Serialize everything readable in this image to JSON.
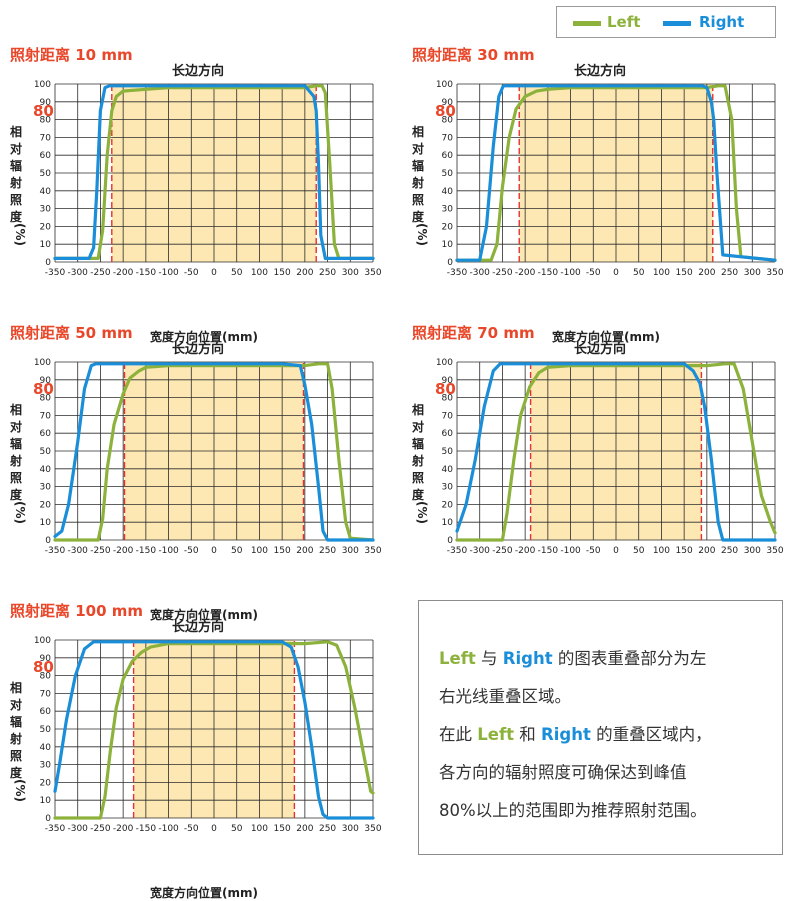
{
  "legend": {
    "left_label": "Left",
    "right_label": "Right",
    "left_color": "#8db23c",
    "right_color": "#1a8ed8"
  },
  "common": {
    "subtitle": "长边方向",
    "ylabel_chars": [
      "相",
      "对",
      "辐",
      "射",
      "照",
      "度"
    ],
    "ylabel_unit": "(%)",
    "marker_80": "80",
    "xlabel": "宽度方向位置(mm)",
    "x_ticks": [
      -350,
      -300,
      -250,
      -200,
      -150,
      -100,
      -50,
      0,
      50,
      100,
      150,
      200,
      250,
      300,
      350
    ],
    "y_ticks": [
      0,
      10,
      20,
      30,
      40,
      50,
      60,
      70,
      80,
      90,
      100
    ],
    "xlim": [
      -350,
      350
    ],
    "ylim": [
      0,
      100
    ],
    "overlap_fill": "#fde8b4",
    "threshold_line_color": "#e83030"
  },
  "chart_data": [
    {
      "type": "line",
      "title": "照射距离 10 mm",
      "overlap_range": [
        -225,
        225
      ],
      "series": [
        {
          "name": "Left",
          "x": [
            -350,
            -255,
            -245,
            -235,
            -225,
            -215,
            -200,
            -150,
            -100,
            -50,
            0,
            50,
            100,
            150,
            200,
            225,
            238,
            245,
            255,
            265,
            275,
            350
          ],
          "y": [
            2,
            2,
            18,
            60,
            85,
            93,
            96,
            97,
            98,
            98,
            98,
            98,
            98,
            98,
            98,
            99,
            99,
            95,
            55,
            10,
            2,
            2
          ]
        },
        {
          "name": "Right",
          "x": [
            -350,
            -275,
            -265,
            -258,
            -250,
            -240,
            -230,
            -200,
            -150,
            -100,
            -50,
            0,
            50,
            100,
            150,
            200,
            220,
            225,
            230,
            235,
            245,
            350
          ],
          "y": [
            2,
            2,
            8,
            40,
            85,
            98,
            99,
            99,
            99,
            99,
            99,
            99,
            99,
            99,
            99,
            99,
            93,
            85,
            55,
            15,
            2,
            2
          ]
        }
      ]
    },
    {
      "type": "line",
      "title": "照射距离 30 mm",
      "overlap_range": [
        -213,
        213
      ],
      "series": [
        {
          "name": "Left",
          "x": [
            -350,
            -275,
            -262,
            -250,
            -235,
            -220,
            -200,
            -175,
            -150,
            -100,
            -50,
            0,
            50,
            100,
            150,
            200,
            225,
            240,
            255,
            265,
            275,
            350
          ],
          "y": [
            1,
            1,
            10,
            42,
            70,
            86,
            93,
            96,
            97,
            98,
            98,
            98,
            98,
            98,
            98,
            98,
            99,
            99,
            80,
            30,
            3,
            1
          ]
        },
        {
          "name": "Right",
          "x": [
            -350,
            -300,
            -285,
            -270,
            -258,
            -248,
            -240,
            -200,
            -150,
            -100,
            -50,
            0,
            50,
            100,
            150,
            190,
            200,
            210,
            215,
            222,
            235,
            350
          ],
          "y": [
            1,
            1,
            20,
            65,
            93,
            99,
            99,
            99,
            99,
            99,
            99,
            99,
            99,
            99,
            99,
            99,
            98,
            90,
            80,
            50,
            4,
            1
          ]
        }
      ]
    },
    {
      "type": "line",
      "title": "照射距离 50 mm",
      "overlap_range": [
        -197,
        197
      ],
      "series": [
        {
          "name": "Left",
          "x": [
            -350,
            -255,
            -245,
            -235,
            -220,
            -200,
            -185,
            -165,
            -150,
            -100,
            -50,
            0,
            50,
            100,
            150,
            200,
            230,
            250,
            260,
            275,
            290,
            300,
            350
          ],
          "y": [
            0,
            0,
            12,
            40,
            65,
            82,
            91,
            95,
            97,
            98,
            98,
            98,
            98,
            98,
            98,
            98,
            99,
            99,
            85,
            45,
            10,
            1,
            0
          ]
        },
        {
          "name": "Right",
          "x": [
            -350,
            -335,
            -320,
            -300,
            -285,
            -270,
            -260,
            -250,
            -200,
            -150,
            -100,
            -50,
            0,
            50,
            100,
            150,
            190,
            200,
            215,
            230,
            240,
            250,
            350
          ],
          "y": [
            2,
            5,
            20,
            55,
            85,
            98,
            99,
            99,
            99,
            99,
            99,
            99,
            99,
            99,
            99,
            99,
            98,
            87,
            65,
            30,
            5,
            0,
            0
          ]
        }
      ]
    },
    {
      "type": "line",
      "title": "照射距离 70 mm",
      "overlap_range": [
        -188,
        188
      ],
      "series": [
        {
          "name": "Left",
          "x": [
            -350,
            -250,
            -240,
            -225,
            -210,
            -190,
            -170,
            -150,
            -100,
            -50,
            0,
            50,
            100,
            150,
            200,
            240,
            260,
            280,
            300,
            320,
            340,
            350
          ],
          "y": [
            0,
            0,
            15,
            45,
            70,
            86,
            94,
            97,
            98,
            98,
            98,
            98,
            98,
            98,
            98,
            99,
            99,
            85,
            55,
            25,
            10,
            4
          ]
        },
        {
          "name": "Right",
          "x": [
            -350,
            -330,
            -310,
            -290,
            -270,
            -255,
            -240,
            -200,
            -150,
            -100,
            -50,
            0,
            50,
            100,
            150,
            170,
            185,
            195,
            210,
            225,
            235,
            350
          ],
          "y": [
            5,
            20,
            45,
            75,
            95,
            99,
            99,
            99,
            99,
            99,
            99,
            99,
            99,
            99,
            99,
            95,
            88,
            75,
            45,
            10,
            0,
            0
          ]
        }
      ]
    },
    {
      "type": "line",
      "title": "照射距离 100 mm",
      "overlap_range": [
        -177,
        177
      ],
      "series": [
        {
          "name": "Left",
          "x": [
            -350,
            -250,
            -240,
            -228,
            -215,
            -200,
            -180,
            -160,
            -140,
            -100,
            -50,
            0,
            50,
            100,
            150,
            200,
            250,
            270,
            290,
            310,
            330,
            345,
            350
          ],
          "y": [
            0,
            0,
            12,
            38,
            62,
            78,
            88,
            93,
            96,
            98,
            98,
            98,
            98,
            98,
            98,
            98,
            99,
            97,
            85,
            62,
            35,
            15,
            14
          ]
        },
        {
          "name": "Right",
          "x": [
            -350,
            -340,
            -325,
            -305,
            -285,
            -265,
            -250,
            -200,
            -150,
            -100,
            -50,
            0,
            50,
            100,
            150,
            170,
            185,
            200,
            215,
            230,
            240,
            250,
            350
          ],
          "y": [
            15,
            30,
            55,
            80,
            95,
            99,
            99,
            99,
            99,
            99,
            99,
            99,
            99,
            99,
            99,
            96,
            85,
            65,
            40,
            12,
            2,
            0,
            0
          ]
        }
      ]
    }
  ],
  "note": {
    "line1_left": "Left",
    "line1_mid": " 与 ",
    "line1_right": "Right",
    "line1_rest": " 的图表重叠部分为左",
    "line2": "右光线重叠区域。",
    "line3_pre": "在此 ",
    "line3_left": "Left",
    "line3_mid": " 和 ",
    "line3_right": "Right",
    "line3_rest": " 的重叠区域内，",
    "line4": "各方向的辐射照度可确保达到峰值",
    "line5": "80%以上的范围即为推荐照射范围。"
  }
}
